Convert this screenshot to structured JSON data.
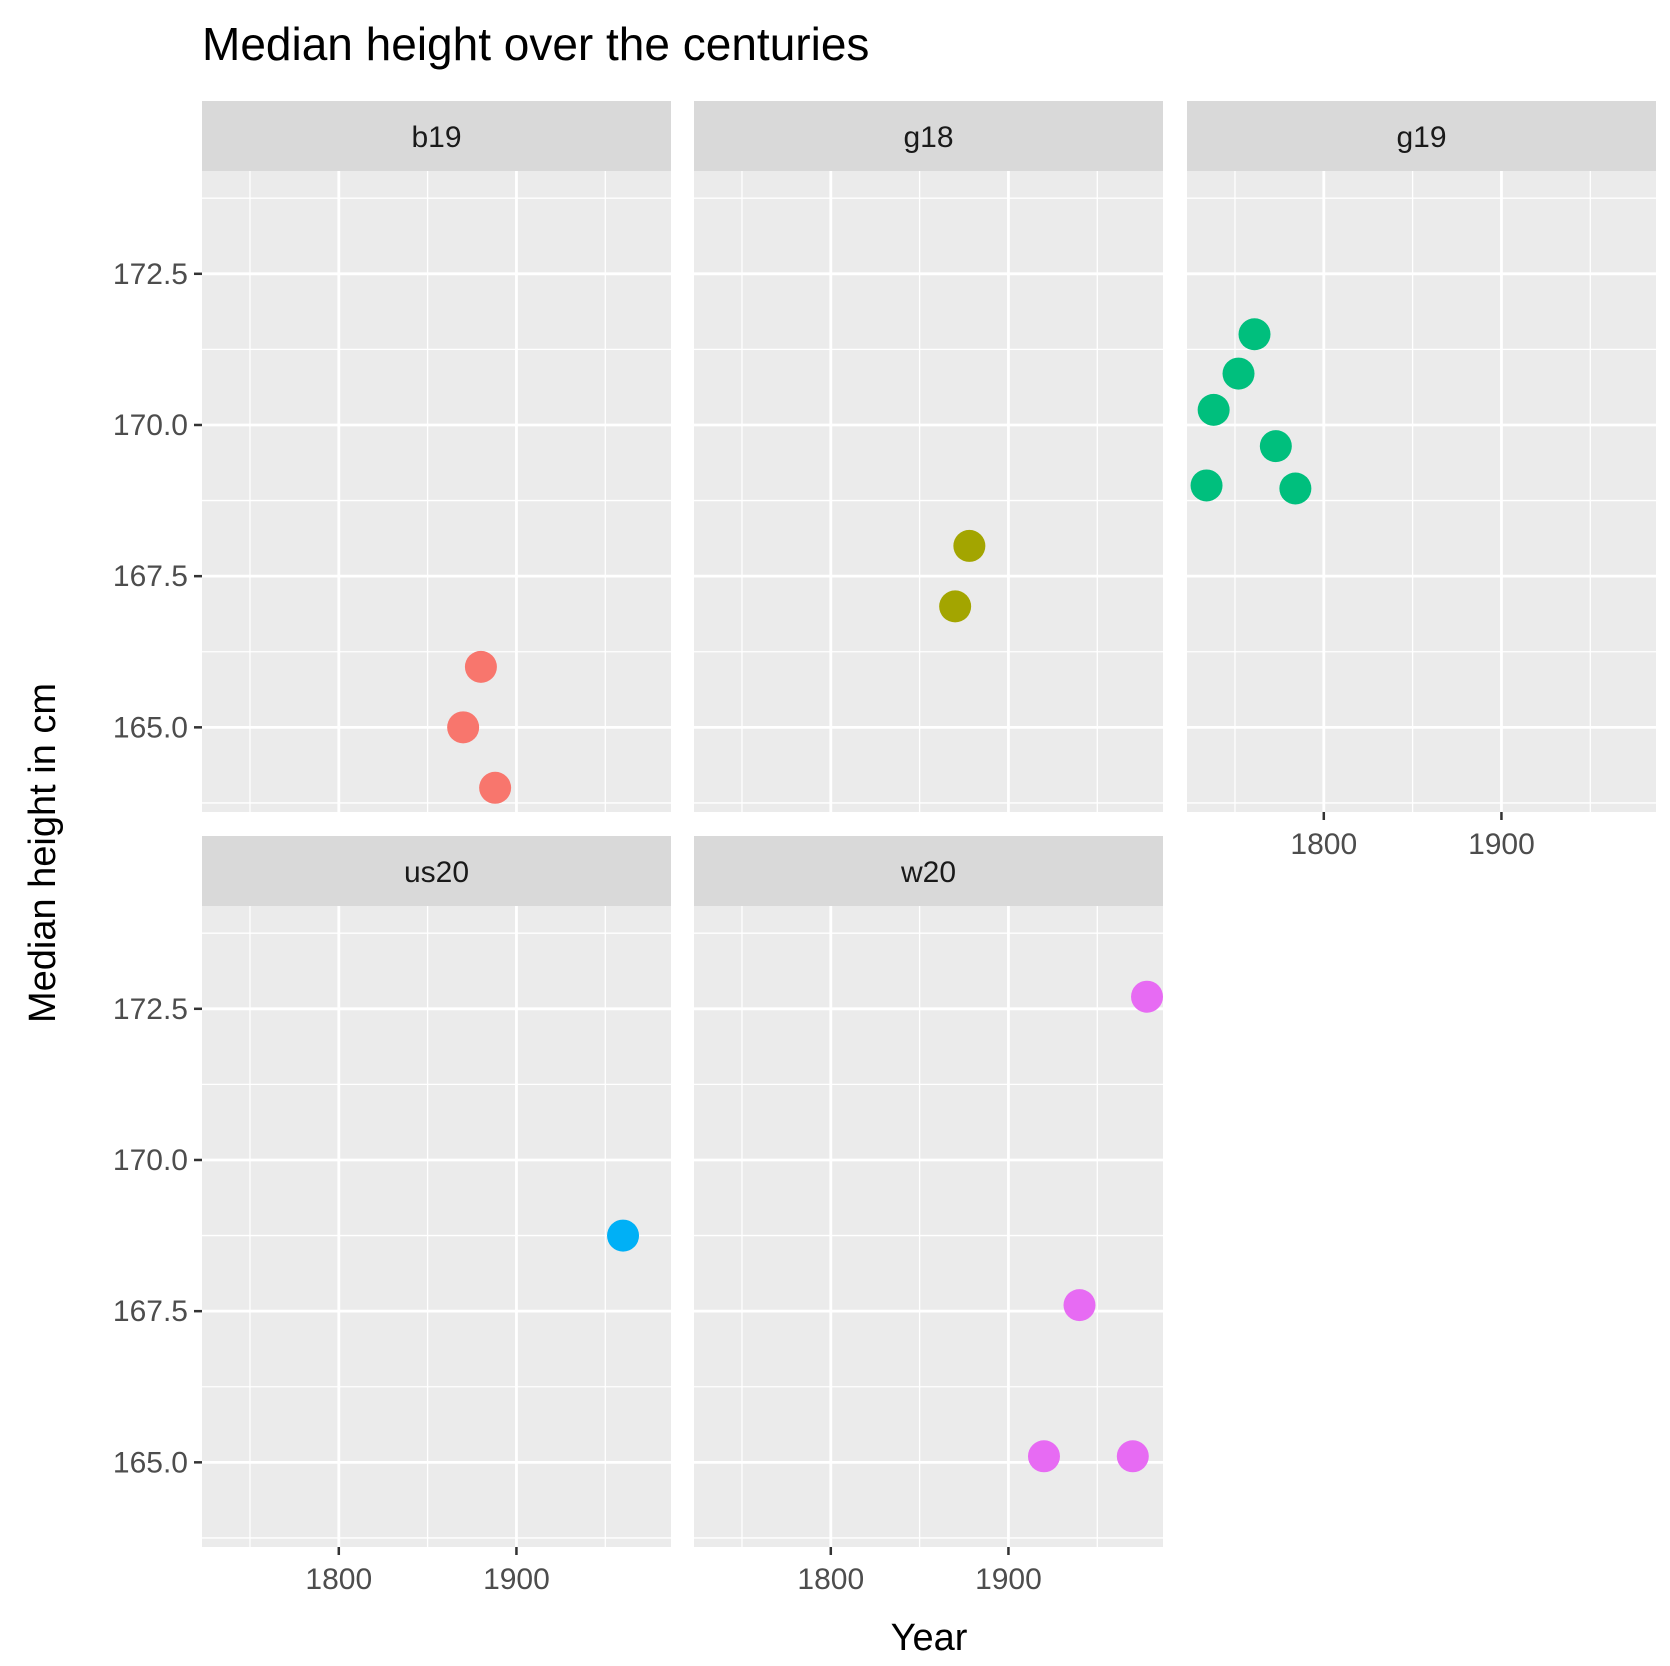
{
  "chart_data": {
    "type": "scatter",
    "title": "Median height over the centuries",
    "xlabel": "Year",
    "ylabel": "Median height in cm",
    "xlim": [
      1723,
      1987
    ],
    "ylim": [
      163.6,
      174.2
    ],
    "x_ticks": [
      1800,
      1900
    ],
    "y_ticks": [
      165.0,
      167.5,
      170.0,
      172.5
    ],
    "x_tick_labels": [
      "1800",
      "1900"
    ],
    "y_tick_labels": [
      "165.0",
      "167.5",
      "170.0",
      "172.5"
    ],
    "grid": true,
    "legend": "none",
    "facets": [
      {
        "label": "b19",
        "color": "#F8766D",
        "points": [
          {
            "x": 1870,
            "y": 165.0
          },
          {
            "x": 1880,
            "y": 166.0
          },
          {
            "x": 1888,
            "y": 164.0
          }
        ]
      },
      {
        "label": "g18",
        "color": "#A3A500",
        "points": [
          {
            "x": 1870,
            "y": 167.0
          },
          {
            "x": 1878,
            "y": 168.0
          }
        ]
      },
      {
        "label": "g19",
        "color": "#00BF7D",
        "points": [
          {
            "x": 1734,
            "y": 169.0
          },
          {
            "x": 1738,
            "y": 170.25
          },
          {
            "x": 1752,
            "y": 170.85
          },
          {
            "x": 1761,
            "y": 171.5
          },
          {
            "x": 1773,
            "y": 169.65
          },
          {
            "x": 1784,
            "y": 168.95
          }
        ]
      },
      {
        "label": "us20",
        "color": "#00B0F6",
        "points": [
          {
            "x": 1960,
            "y": 168.75
          }
        ]
      },
      {
        "label": "w20",
        "color": "#E76BF3",
        "points": [
          {
            "x": 1920,
            "y": 165.1
          },
          {
            "x": 1940,
            "y": 167.6
          },
          {
            "x": 1970,
            "y": 165.1
          },
          {
            "x": 1978,
            "y": 172.7
          }
        ]
      }
    ]
  }
}
